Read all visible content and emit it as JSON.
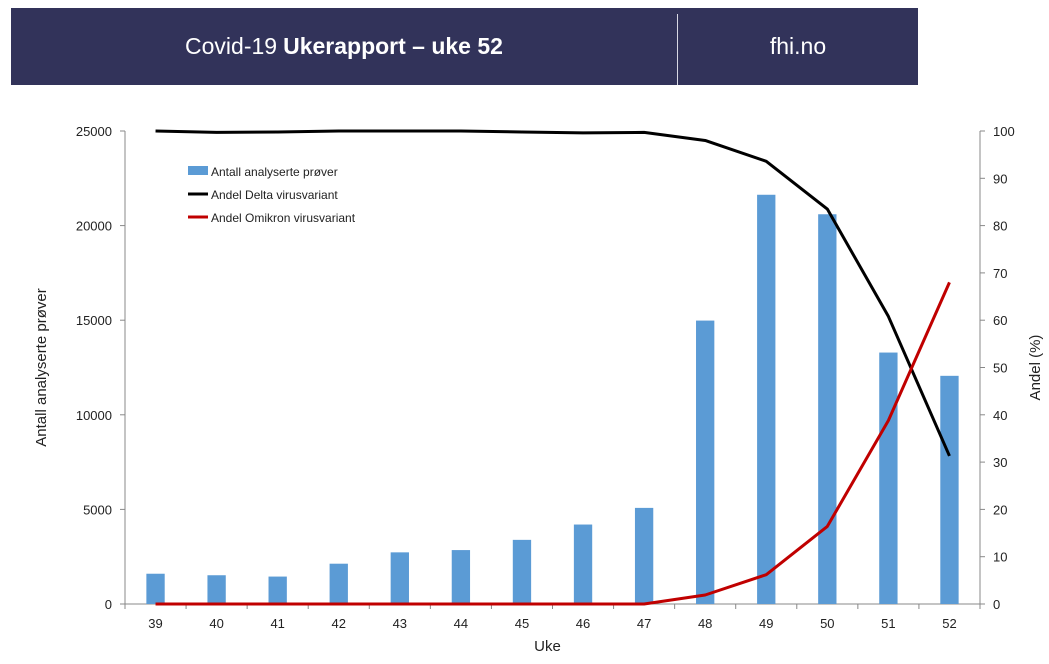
{
  "header": {
    "title_prefix": "Covid-19",
    "title_bold": "Ukerapport – uke 52",
    "site": "fhi.no"
  },
  "chart_data": {
    "type": "bar",
    "categories": [
      "39",
      "40",
      "41",
      "42",
      "43",
      "44",
      "45",
      "46",
      "47",
      "48",
      "49",
      "50",
      "51",
      "52"
    ],
    "series": [
      {
        "name": "Antall analyserte prøver",
        "type": "bar",
        "axis": "left",
        "color": "#5b9bd5",
        "values": [
          1600,
          1520,
          1450,
          2130,
          2730,
          2850,
          3390,
          4200,
          5080,
          14980,
          21630,
          20600,
          13290,
          12060
        ]
      },
      {
        "name": "Andel Delta virusvariant",
        "type": "line",
        "axis": "right",
        "color": "#000000",
        "values": [
          100,
          99.7,
          99.8,
          100,
          100,
          100,
          99.8,
          99.6,
          99.7,
          98,
          93.6,
          83.5,
          60.8,
          31.3
        ]
      },
      {
        "name": "Andel Omikron virusvariant",
        "type": "line",
        "axis": "right",
        "color": "#c00000",
        "values": [
          0,
          0,
          0,
          0,
          0,
          0,
          0,
          0,
          0,
          1.9,
          6.2,
          16.4,
          38.8,
          68
        ]
      }
    ],
    "xlabel": "Uke",
    "ylabel": "Antall analyserte prøver",
    "y2label": "Andel (%)",
    "ylim": [
      0,
      25000
    ],
    "y2lim": [
      0,
      100
    ],
    "yticks": [
      0,
      5000,
      10000,
      15000,
      20000,
      25000
    ],
    "y2ticks": [
      0,
      10,
      20,
      30,
      40,
      50,
      60,
      70,
      80,
      90,
      100
    ],
    "legend_position": "top-left",
    "grid": false
  }
}
